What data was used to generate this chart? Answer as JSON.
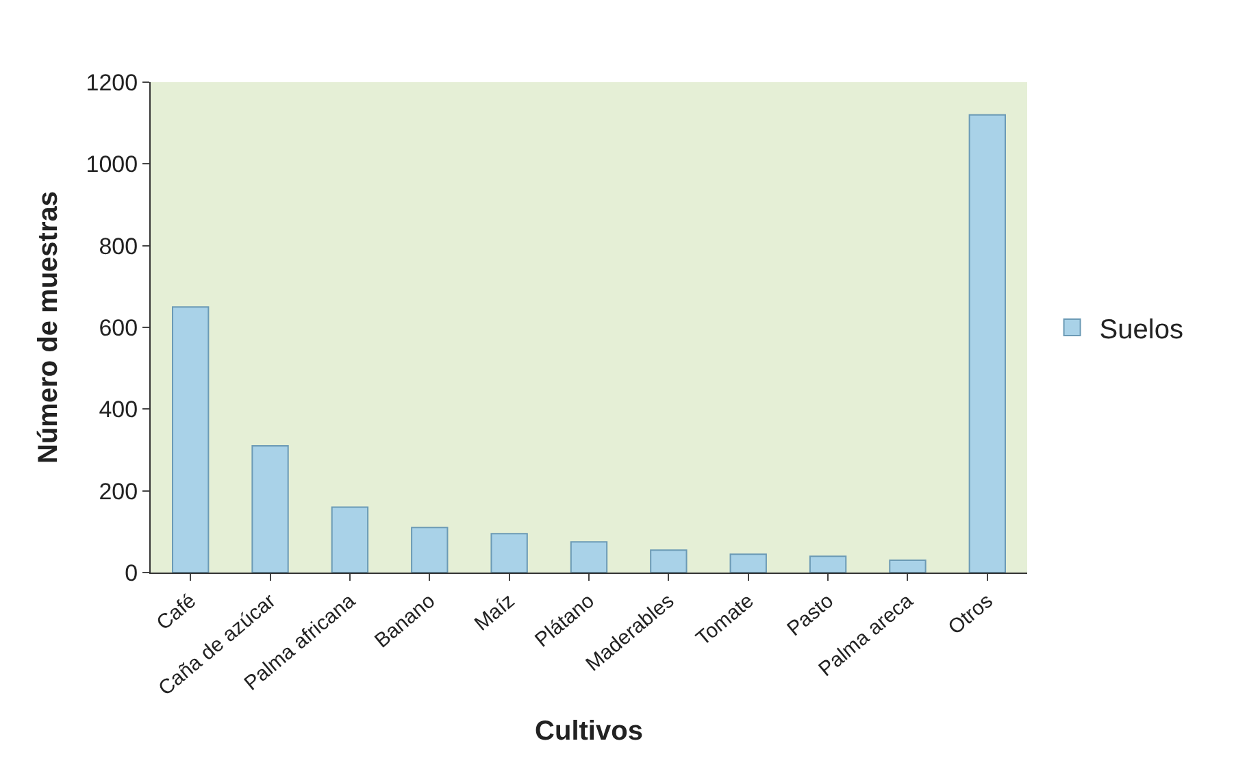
{
  "chart_data": {
    "type": "bar",
    "xlabel": "Cultivos",
    "ylabel": "Número de muestras",
    "categories": [
      "Café",
      "Caña de azúcar",
      "Palma africana",
      "Banano",
      "Maíz",
      "Plátano",
      "Maderables",
      "Tomate",
      "Pasto",
      "Palma areca",
      "Otros"
    ],
    "series": [
      {
        "name": "Suelos",
        "color": "#a9d2e8",
        "values": [
          650,
          310,
          160,
          110,
          95,
          75,
          55,
          45,
          40,
          30,
          1120
        ]
      }
    ],
    "ylim": [
      0,
      1200
    ],
    "yticks": [
      0,
      200,
      400,
      600,
      800,
      1000,
      1200
    ],
    "grid": false,
    "legend": "right"
  }
}
